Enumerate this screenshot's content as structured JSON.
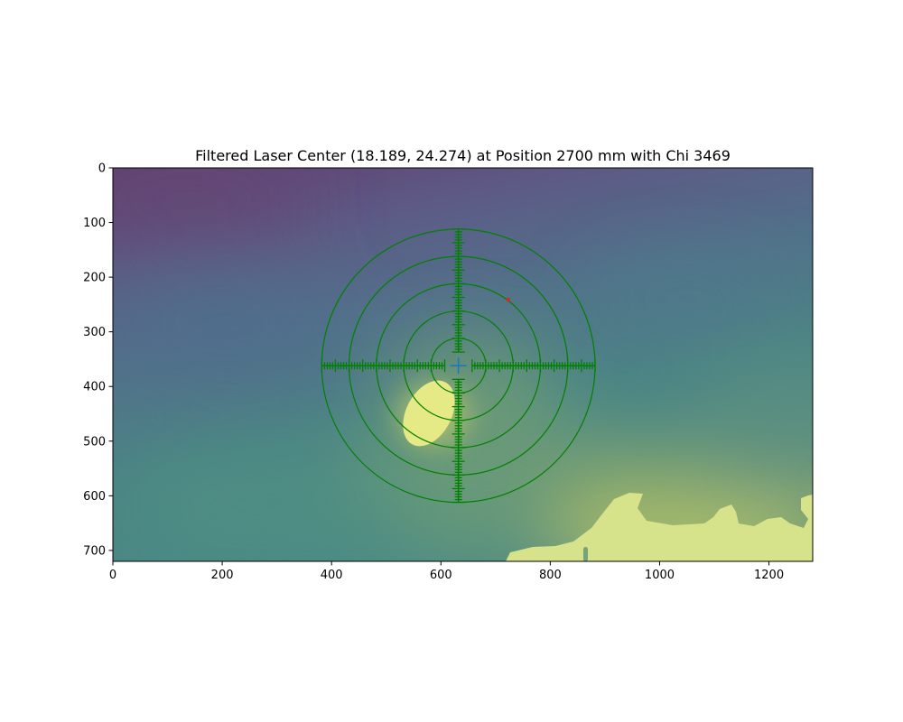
{
  "chart_data": {
    "type": "heatmap",
    "title": "Filtered Laser Center (18.189, 24.274) at Position 2700 mm with Chi 3469",
    "xlabel": "",
    "ylabel": "",
    "xlim": [
      0,
      1280
    ],
    "ylim": [
      720,
      0
    ],
    "y_inverted": true,
    "xticks": [
      0,
      200,
      400,
      600,
      800,
      1000,
      1200
    ],
    "yticks": [
      0,
      100,
      200,
      300,
      400,
      500,
      600,
      700
    ],
    "grid": false,
    "colormap": "viridis",
    "image_alpha": 0.8,
    "target_center": [
      632,
      362
    ],
    "ring_radii": [
      50,
      100,
      150,
      200,
      250
    ],
    "ring_color": "#008000",
    "scale_tick_spacing": 5,
    "scale_major_every": 5,
    "scale_extent": 250,
    "scale_gap": 25,
    "center_marker": {
      "x": 632,
      "y": 362,
      "color": "#1f77b4",
      "marker": "plus"
    },
    "detected_point": {
      "x": 723,
      "y": 241,
      "color": "#d62728"
    }
  }
}
